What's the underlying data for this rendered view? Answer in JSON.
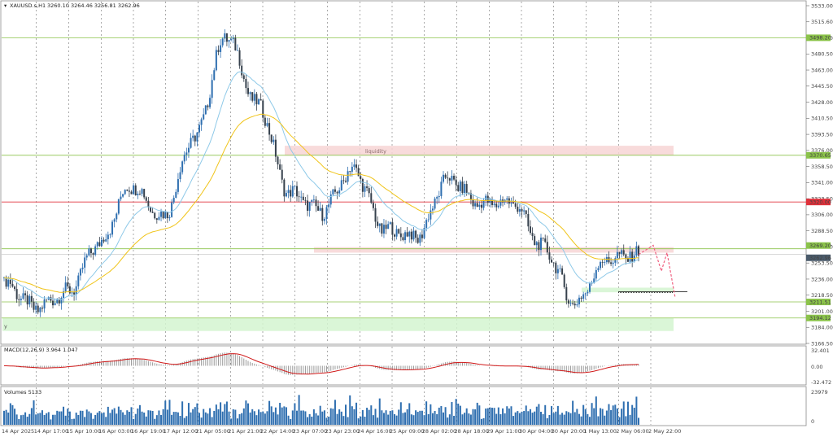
{
  "header": {
    "symbol": "XAUUSD.s,H1",
    "ohlc": "3260.10 3264.46 3256.81 3262.96"
  },
  "price_axis": {
    "ticks": [
      "3533.00",
      "3515.60",
      "3498.20",
      "3480.50",
      "3463.00",
      "3445.50",
      "3428.00",
      "3410.50",
      "3393.50",
      "3376.00",
      "3358.50",
      "3341.00",
      "3323.50",
      "3306.00",
      "3288.50",
      "3271.00",
      "3253.50",
      "3236.00",
      "3218.50",
      "3201.00",
      "3184.00",
      "3166.50"
    ]
  },
  "level_labels": [
    {
      "text": "3498.20",
      "color": "#8bc34a"
    },
    {
      "text": "3370.65",
      "color": "#8bc34a"
    },
    {
      "text": "3320.00",
      "color": "#e0303a"
    },
    {
      "text": "3269.20",
      "color": "#8bc34a"
    },
    {
      "text": "3262.96",
      "color": "#4a5a6a"
    },
    {
      "text": "3211.51",
      "color": "#8bc34a"
    },
    {
      "text": "3194.12",
      "color": "#8bc34a"
    }
  ],
  "zones": {
    "liquidity_label": "liquidity"
  },
  "macd": {
    "label": "MACD(12,26,9) 3.964 1.047",
    "ticks": [
      "32.401",
      "0.00",
      "-32.472"
    ]
  },
  "volumes": {
    "label": "Volumes 5133",
    "ticks": [
      "23979",
      "0"
    ]
  },
  "time_axis": {
    "labels": [
      "14 Apr 2025",
      "14 Apr 17:00",
      "15 Apr 10:00",
      "16 Apr 03:00",
      "16 Apr 19:00",
      "17 Apr 12:00",
      "21 Apr 05:00",
      "21 Apr 21:00",
      "22 Apr 14:00",
      "23 Apr 07:00",
      "23 Apr 23:00",
      "24 Apr 16:00",
      "25 Apr 09:00",
      "28 Apr 02:00",
      "28 Apr 18:00",
      "29 Apr 11:00",
      "30 Apr 04:00",
      "30 Apr 20:00",
      "1 May 13:00",
      "2 May 06:00",
      "2 May 22:00"
    ]
  },
  "colors": {
    "bull": "#2f6fb0",
    "bear": "#36414d",
    "ma_fast": "#8ec9e8",
    "ma_slow": "#f0c419",
    "level_green": "#8bc34a",
    "level_red": "#e0303a",
    "zone_red": "#f7d5d5",
    "zone_green": "#d4f5d0",
    "macd_signal": "#d01818",
    "macd_hist": "#9a9a9a",
    "volume": "#2f6fb0",
    "forecast": "#f06080"
  },
  "chart_data": {
    "type": "candlestick",
    "symbol": "XAUUSD",
    "timeframe": "H1",
    "x_range": [
      "14 Apr 2025",
      "2 May 22:00"
    ],
    "ylim": [
      3166.5,
      3533.0
    ],
    "key_points": [
      {
        "x": "14 Apr 2025",
        "y": 3232
      },
      {
        "x": "14 Apr 17:00",
        "y": 3205
      },
      {
        "x": "15 Apr 10:00",
        "y": 3222
      },
      {
        "x": "16 Apr 03:00",
        "y": 3275
      },
      {
        "x": "16 Apr 19:00",
        "y": 3338
      },
      {
        "x": "17 Apr 12:00",
        "y": 3304
      },
      {
        "x": "21 Apr 05:00",
        "y": 3390
      },
      {
        "x": "21 Apr 21:00",
        "y": 3500
      },
      {
        "x": "22 Apr 14:00",
        "y": 3425
      },
      {
        "x": "23 Apr 07:00",
        "y": 3330
      },
      {
        "x": "23 Apr 23:00",
        "y": 3310
      },
      {
        "x": "24 Apr 16:00",
        "y": 3355
      },
      {
        "x": "25 Apr 09:00",
        "y": 3290
      },
      {
        "x": "28 Apr 02:00",
        "y": 3282
      },
      {
        "x": "28 Apr 18:00",
        "y": 3345
      },
      {
        "x": "29 Apr 11:00",
        "y": 3318
      },
      {
        "x": "30 Apr 04:00",
        "y": 3320
      },
      {
        "x": "30 Apr 20:00",
        "y": 3270
      },
      {
        "x": "1 May 13:00",
        "y": 3210
      },
      {
        "x": "2 May 06:00",
        "y": 3258
      },
      {
        "x": "2 May 22:00",
        "y": 3262.96
      }
    ],
    "last_price": 3262.96,
    "horizontal_levels": [
      3498.2,
      3370.65,
      3320.0,
      3269.2,
      3211.51,
      3194.12
    ],
    "zones": [
      {
        "label": "liquidity",
        "from": 3370.65,
        "to": 3381,
        "color": "red"
      },
      {
        "from": 3265,
        "to": 3271,
        "color": "red"
      },
      {
        "from": 3222,
        "to": 3227,
        "color": "green"
      },
      {
        "from": 3180,
        "to": 3194.12,
        "color": "green"
      }
    ],
    "forecast_path": [
      3262.96,
      3273,
      3245,
      3265,
      3216
    ],
    "macd_range": [
      -32.472,
      32.401
    ],
    "macd_values": {
      "macd": 3.964,
      "signal": 1.047
    },
    "volume_max": 23979,
    "volume_last": 5133
  }
}
